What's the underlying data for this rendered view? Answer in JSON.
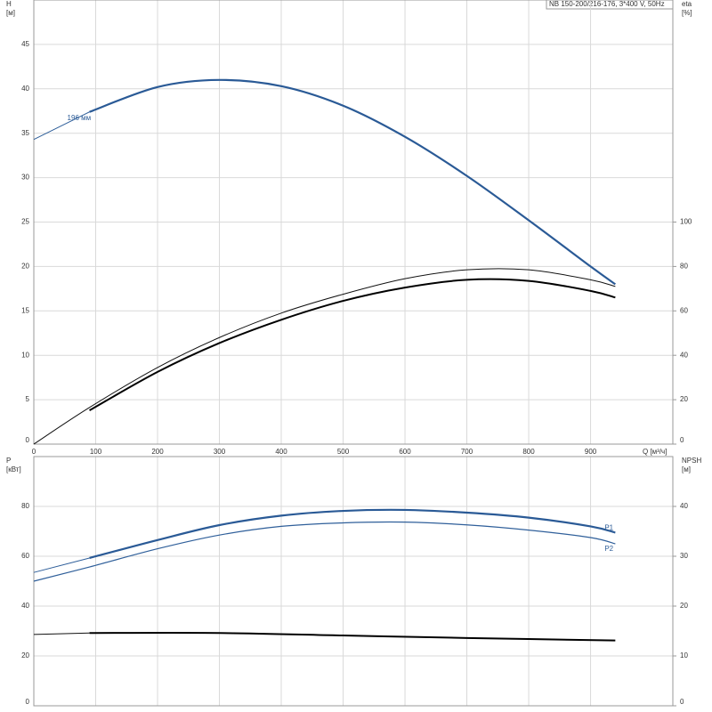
{
  "chart_data": [
    {
      "type": "line",
      "header": "NB 150-200/216-176, 3*400 V, 50Hz",
      "ylabel": [
        "H",
        "[м]"
      ],
      "y2label": [
        "eta",
        "[%]"
      ],
      "xlabel": "Q [м³/ч]",
      "xlim": [
        0,
        1033
      ],
      "xticks": [
        0,
        100,
        200,
        300,
        400,
        500,
        600,
        700,
        800,
        900
      ],
      "ylim": [
        0,
        50
      ],
      "yticks": [
        0,
        5,
        10,
        15,
        20,
        25,
        30,
        35,
        40,
        45
      ],
      "y2lim": [
        0,
        200
      ],
      "y2ticks": [
        0,
        20,
        40,
        60,
        80,
        100
      ],
      "grid": true,
      "label_position": "start",
      "series": [
        {
          "x": [
            0,
            90
          ],
          "values": [
            34.3,
            37.4
          ],
          "color": "#2f5f9a",
          "width": 1
        },
        {
          "name": "196 мм",
          "x": [
            90,
            200,
            300,
            400,
            500,
            600,
            700,
            800,
            900,
            940
          ],
          "values": [
            37.4,
            40.2,
            41.0,
            40.3,
            38.1,
            34.6,
            30.2,
            25.2,
            20.0,
            18.0
          ],
          "color": "#2a5a96",
          "width": 2.2
        },
        {
          "x": [
            0,
            90,
            200,
            300,
            400,
            500,
            600,
            700,
            800,
            900,
            940
          ],
          "values": [
            0,
            16.5,
            34.5,
            48,
            59,
            67.5,
            74.5,
            78.5,
            78.5,
            74,
            71
          ],
          "color": "#111111",
          "width": 1,
          "axis": "y2"
        },
        {
          "x": [
            90,
            200,
            300,
            400,
            500,
            600,
            700,
            800,
            900,
            940
          ],
          "values": [
            15.2,
            32.5,
            45.5,
            56,
            64.5,
            70.5,
            74,
            73.5,
            69,
            66
          ],
          "color": "#000000",
          "width": 2,
          "axis": "y2"
        }
      ]
    },
    {
      "type": "line",
      "ylabel": [
        "P",
        "[кВт]"
      ],
      "y2label": [
        "NPSH",
        "[м]"
      ],
      "xlim": [
        0,
        1033
      ],
      "xgrid": [
        100,
        200,
        300,
        400,
        500,
        600,
        700,
        800,
        900
      ],
      "ylim": [
        0,
        100
      ],
      "yticks": [
        0,
        20,
        40,
        60,
        80
      ],
      "y2lim": [
        0,
        50
      ],
      "y2ticks": [
        0,
        10,
        20,
        30,
        40
      ],
      "grid": true,
      "label_position": "end",
      "series": [
        {
          "x": [
            0,
            90
          ],
          "values": [
            53.5,
            59.3
          ],
          "color": "#2f5f9a",
          "width": 1
        },
        {
          "name": "P1",
          "x": [
            90,
            200,
            300,
            400,
            500,
            600,
            700,
            800,
            900,
            940
          ],
          "values": [
            59.3,
            66.5,
            72.5,
            76.3,
            78.2,
            78.6,
            77.5,
            75.5,
            72,
            69.5
          ],
          "color": "#2a5a96",
          "width": 2.2
        },
        {
          "name": "P2",
          "x": [
            0,
            90,
            200,
            300,
            400,
            500,
            600,
            700,
            800,
            900,
            940
          ],
          "values": [
            50,
            55.7,
            63,
            68.5,
            72,
            73.4,
            73.7,
            72.6,
            70.5,
            67.5,
            65
          ],
          "color": "#2f5f9a",
          "width": 1.2
        },
        {
          "x": [
            0,
            90
          ],
          "values": [
            14.3,
            14.6
          ],
          "color": "#111111",
          "width": 1,
          "axis": "y2"
        },
        {
          "x": [
            90,
            300,
            500,
            700,
            940
          ],
          "values": [
            14.6,
            14.6,
            14.1,
            13.6,
            13.1
          ],
          "color": "#000000",
          "width": 2,
          "axis": "y2"
        }
      ]
    }
  ]
}
